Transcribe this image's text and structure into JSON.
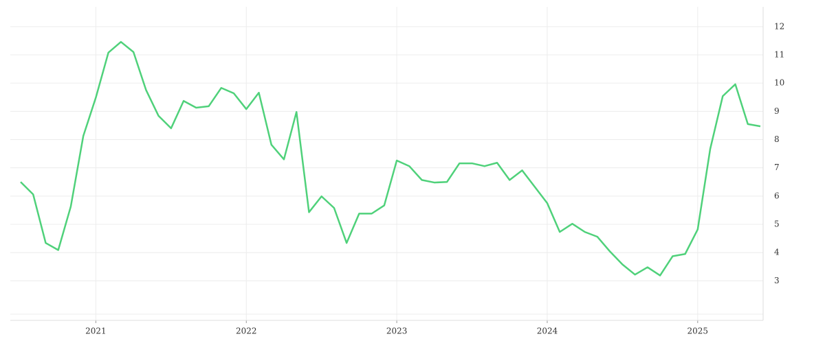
{
  "chart_data": {
    "type": "line",
    "color": "#4fd17a",
    "grid": true,
    "categories": [
      null,
      null,
      null,
      null,
      null,
      null,
      "2021",
      null,
      null,
      null,
      null,
      null,
      null,
      null,
      null,
      null,
      null,
      null,
      "2022",
      null,
      null,
      null,
      null,
      null,
      null,
      null,
      null,
      null,
      null,
      null,
      "2023",
      null,
      null,
      null,
      null,
      null,
      null,
      null,
      null,
      null,
      null,
      null,
      "2024",
      null,
      null,
      null,
      null,
      null,
      null,
      null,
      null,
      null,
      null,
      null,
      "2025",
      null,
      null,
      null,
      null,
      null
    ],
    "values": [
      6.5,
      6.06,
      4.34,
      4.09,
      5.63,
      8.13,
      9.49,
      11.08,
      11.46,
      11.1,
      9.76,
      8.84,
      8.4,
      9.37,
      9.13,
      9.18,
      9.83,
      9.64,
      9.08,
      9.66,
      7.82,
      7.3,
      8.98,
      5.43,
      5.99,
      5.58,
      4.34,
      5.38,
      5.38,
      5.67,
      7.26,
      7.06,
      6.57,
      6.48,
      6.5,
      7.16,
      7.16,
      7.06,
      7.18,
      6.57,
      6.91,
      6.33,
      5.75,
      4.73,
      5.02,
      4.73,
      4.56,
      4.04,
      3.58,
      3.22,
      3.48,
      3.19,
      3.87,
      3.95,
      4.82,
      7.67,
      9.54,
      9.96,
      8.55,
      8.47
    ],
    "ylim": [
      1.6,
      12.7
    ],
    "yticks": [
      3,
      4,
      5,
      6,
      7,
      8,
      9,
      10,
      11,
      12
    ]
  }
}
